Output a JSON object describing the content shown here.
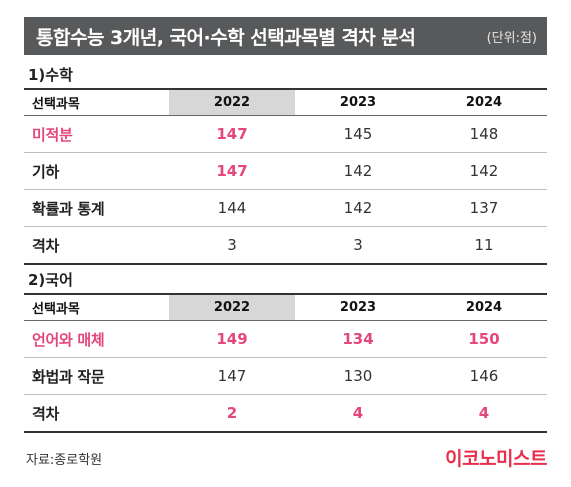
{
  "title": "통합수능 3개년, 국어·수학 선택과목별 격차 분석",
  "unit": "(단위:점)",
  "source": "자료:종로학원",
  "brand": "이코노미스트",
  "colors": {
    "highlight": "#e5477a",
    "title_bg": "#58595b",
    "header_highlight": "#d7d7d7",
    "brand": "#e8304d"
  },
  "chart_data": [
    {
      "type": "table",
      "title": "1)수학",
      "columns": [
        "선택과목",
        "2022",
        "2023",
        "2024"
      ],
      "rows": [
        {
          "label": "미적분",
          "values": [
            "147",
            "145",
            "148"
          ]
        },
        {
          "label": "기하",
          "values": [
            "147",
            "142",
            "142"
          ]
        },
        {
          "label": "확률과 통계",
          "values": [
            "144",
            "142",
            "137"
          ]
        },
        {
          "label": "격차",
          "values": [
            "3",
            "3",
            "11"
          ]
        }
      ]
    },
    {
      "type": "table",
      "title": "2)국어",
      "columns": [
        "선택과목",
        "2022",
        "2023",
        "2024"
      ],
      "rows": [
        {
          "label": "언어와 매체",
          "values": [
            "149",
            "134",
            "150"
          ]
        },
        {
          "label": "화법과 작문",
          "values": [
            "147",
            "130",
            "146"
          ]
        },
        {
          "label": "격차",
          "values": [
            "2",
            "4",
            "4"
          ]
        }
      ]
    }
  ]
}
